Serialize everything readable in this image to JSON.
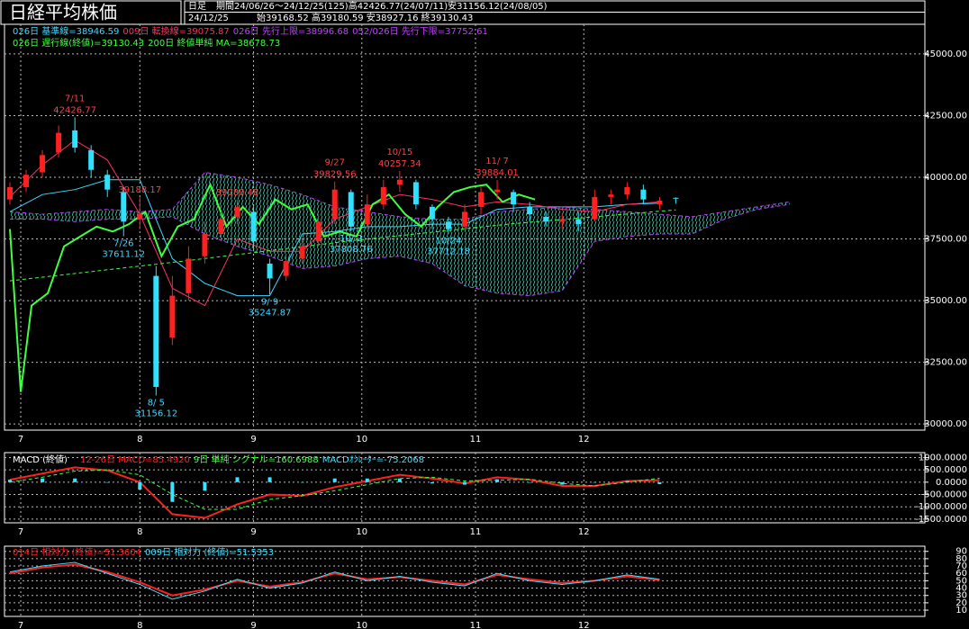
{
  "header": {
    "title": "日経平均株価",
    "period_label": "日足",
    "period": "期間24/06/26～24/12/25(125)高42426.77(24/07/11)安31156.12(24/08/05)",
    "date": "24/12/25",
    "ohlc": "始39168.52 高39180.59 安38927.16 終39130.43"
  },
  "chart_data": [
    {
      "type": "candlestick",
      "up_color": "#ff2020",
      "down_color": "#30e0ff",
      "grid": true,
      "cloud_color": "#40e0c0",
      "xlim": [
        -3,
        167
      ],
      "ylim": [
        29750,
        46200
      ],
      "xticks": [
        {
          "value": 0,
          "label": "7"
        },
        {
          "value": 22,
          "label": "8"
        },
        {
          "value": 43,
          "label": "9"
        },
        {
          "value": 63,
          "label": "10"
        },
        {
          "value": 84,
          "label": "11"
        },
        {
          "value": 104,
          "label": "12"
        }
      ],
      "yticks": [
        {
          "value": 30000,
          "label": "30000.00"
        },
        {
          "value": 32500,
          "label": "32500.00"
        },
        {
          "value": 35000,
          "label": "35000.00"
        },
        {
          "value": 37500,
          "label": "37500.00"
        },
        {
          "value": 40000,
          "label": "40000.00"
        },
        {
          "value": 42500,
          "label": "42500.00"
        },
        {
          "value": 45000,
          "label": "45000.00"
        }
      ],
      "x": [
        -2,
        1,
        4,
        7,
        10,
        13,
        16,
        19,
        22,
        25,
        28,
        31,
        34,
        37,
        40,
        43,
        46,
        49,
        52,
        55,
        58,
        61,
        64,
        67,
        70,
        73,
        76,
        79,
        82,
        85,
        88,
        91,
        94,
        97,
        100,
        103,
        106,
        109,
        112,
        115,
        118,
        121
      ],
      "open": [
        39100,
        39600,
        40200,
        41000,
        41900,
        41100,
        40100,
        39400,
        38300,
        36000,
        33500,
        35300,
        36800,
        37700,
        38400,
        38600,
        36500,
        36000,
        36700,
        37400,
        38300,
        39400,
        38100,
        38900,
        39700,
        39800,
        38800,
        38200,
        38000,
        38800,
        39400,
        39400,
        38800,
        38400,
        38200,
        38300,
        38300,
        39200,
        39300,
        39500,
        38900,
        39168.52
      ],
      "close": [
        39600,
        40100,
        40900,
        41800,
        41200,
        40300,
        39500,
        38200,
        38500,
        31500,
        35200,
        36700,
        37700,
        38300,
        38800,
        37400,
        35900,
        36600,
        37200,
        38200,
        39500,
        38000,
        38900,
        39600,
        39900,
        38900,
        38300,
        37900,
        38600,
        39400,
        39500,
        38900,
        38500,
        38200,
        38300,
        38100,
        39200,
        39300,
        39600,
        39100,
        39050,
        39130.43
      ],
      "high": [
        39800,
        40300,
        41100,
        42100,
        42426.77,
        41300,
        40300,
        39600,
        39188.17,
        36400,
        36000,
        37200,
        38200,
        38600,
        39080.48,
        38800,
        36700,
        36900,
        37500,
        38500,
        39829.56,
        39500,
        39300,
        39900,
        40257.34,
        39900,
        38900,
        38400,
        38900,
        39600,
        39884.01,
        39500,
        39000,
        38600,
        38500,
        38600,
        39500,
        39500,
        39800,
        39700,
        39200,
        39180.59
      ],
      "low": [
        38900,
        39400,
        40000,
        40800,
        41000,
        40000,
        39200,
        37611.12,
        37900,
        31156.12,
        33200,
        35000,
        36500,
        37400,
        38100,
        37000,
        35247.87,
        35800,
        36500,
        37200,
        38100,
        37808.76,
        37900,
        38700,
        39400,
        38700,
        37900,
        37712.18,
        37900,
        38500,
        39100,
        38600,
        38200,
        38000,
        37900,
        37800,
        38200,
        38900,
        39100,
        38900,
        38700,
        38927.16
      ],
      "series": [
        {
          "name": "026日 基準線=38946.59",
          "color": "#40d8ff",
          "x": [
            -2,
            4,
            10,
            16,
            22,
            28,
            34,
            40,
            46,
            52,
            58,
            64,
            70,
            76,
            82,
            88,
            94,
            100,
            106,
            112,
            118
          ],
          "values": [
            38600,
            39300,
            39500,
            39900,
            39900,
            36700,
            35700,
            35200,
            35200,
            37700,
            37800,
            38000,
            38000,
            38100,
            38100,
            38700,
            38800,
            38800,
            38800,
            38900,
            38950
          ]
        },
        {
          "name": "009日 転換線=39075.87",
          "color": "#ff3060",
          "x": [
            -2,
            4,
            10,
            16,
            22,
            28,
            34,
            40,
            46,
            52,
            58,
            64,
            70,
            76,
            82,
            88,
            94,
            100,
            106,
            112,
            118
          ],
          "values": [
            39200,
            40500,
            41500,
            40700,
            38500,
            35500,
            34800,
            37500,
            37000,
            37000,
            38300,
            38800,
            39300,
            39100,
            38800,
            39000,
            38900,
            38700,
            38600,
            38900,
            39000
          ]
        },
        {
          "name": "026日 先行上限=38996.68",
          "color": "#c040ff",
          "style": "dashed",
          "band": "upper",
          "x": [
            -2,
            4,
            10,
            16,
            22,
            28,
            34,
            40,
            46,
            52,
            58,
            64,
            70,
            76,
            82,
            88,
            94,
            100,
            106,
            112,
            118,
            124,
            130,
            136,
            142
          ],
          "values": [
            38600,
            38500,
            38600,
            38700,
            38600,
            38700,
            40200,
            40000,
            39700,
            39300,
            38800,
            38600,
            38400,
            38300,
            38300,
            38600,
            38700,
            38800,
            38700,
            38600,
            38500,
            38400,
            38600,
            38800,
            39000
          ]
        },
        {
          "name": "052/026日 先行下限=37752.61",
          "color": "#c040ff",
          "style": "dashed",
          "band": "lower",
          "x": [
            -2,
            4,
            10,
            16,
            22,
            28,
            34,
            40,
            46,
            52,
            58,
            64,
            70,
            76,
            82,
            88,
            94,
            100,
            106,
            112,
            118,
            124,
            130,
            136,
            142
          ],
          "values": [
            38300,
            38300,
            38200,
            38300,
            38300,
            38400,
            37700,
            37200,
            36800,
            36300,
            36400,
            36700,
            36800,
            36500,
            35600,
            35300,
            35200,
            35400,
            37400,
            37600,
            37700,
            37700,
            38300,
            38700,
            38900
          ]
        },
        {
          "name": "026日 遅行線(終値)=39130.43",
          "color": "#40ff40",
          "width": 2,
          "x": [
            -2,
            0,
            2,
            5,
            8,
            11,
            14,
            17,
            20,
            23,
            26,
            29,
            32,
            35,
            38,
            41,
            44,
            47,
            50,
            53,
            56,
            59,
            62,
            65,
            68,
            71,
            74,
            77,
            80,
            83,
            86,
            89,
            92,
            95
          ],
          "values": [
            37900,
            31300,
            34800,
            35300,
            37200,
            37600,
            38000,
            37800,
            38100,
            38600,
            36800,
            38000,
            38300,
            39700,
            38000,
            38800,
            38100,
            39100,
            38700,
            38900,
            37600,
            37800,
            37600,
            38900,
            39300,
            38500,
            38000,
            38800,
            39400,
            39600,
            39700,
            39000,
            39300,
            39100
          ]
        },
        {
          "name": "200日 終値単純 MA=38678.73",
          "color": "#40ff40",
          "style": "dashed",
          "x": [
            -2,
            30,
            60,
            90,
            121
          ],
          "values": [
            35800,
            36600,
            37400,
            38100,
            38678.73
          ]
        }
      ],
      "annotations": [
        {
          "date": "7/11",
          "x": 10,
          "value": 42426.77,
          "position": "above",
          "color": "#ff4040"
        },
        {
          "x": 22,
          "value": 39188.17,
          "position": "above",
          "color": "#ff4040"
        },
        {
          "date": "7/26",
          "x": 19,
          "value": 37611.12,
          "position": "below",
          "color": "#40d8ff"
        },
        {
          "date": "8/ 5",
          "x": 25,
          "value": 31156.12,
          "position": "below",
          "color": "#40d8ff"
        },
        {
          "x": 40,
          "value": 39080.48,
          "position": "above",
          "color": "#ff4040"
        },
        {
          "date": "9/ 9",
          "x": 46,
          "value": 35247.87,
          "position": "below",
          "color": "#40d8ff"
        },
        {
          "date": "9/27",
          "x": 58,
          "value": 39829.56,
          "position": "above",
          "color": "#ff4040"
        },
        {
          "date": "10/ 2",
          "x": 61,
          "value": 37808.76,
          "position": "below",
          "color": "#40d8ff"
        },
        {
          "date": "10/15",
          "x": 70,
          "value": 40257.34,
          "position": "above",
          "color": "#ff4040"
        },
        {
          "date": "10/24",
          "x": 79,
          "value": 37712.18,
          "position": "below",
          "color": "#40d8ff"
        },
        {
          "date": "11/ 7",
          "x": 88,
          "value": 39884.01,
          "position": "above",
          "color": "#ff4040"
        }
      ]
    },
    {
      "type": "combo",
      "title": "MACD (終値)",
      "grid": true,
      "xlim": [
        -3,
        167
      ],
      "ylim": [
        -1650,
        1200
      ],
      "xticks": [
        {
          "value": 0,
          "label": "7"
        },
        {
          "value": 22,
          "label": "8"
        },
        {
          "value": 43,
          "label": "9"
        },
        {
          "value": 63,
          "label": "10"
        },
        {
          "value": 84,
          "label": "11"
        },
        {
          "value": 104,
          "label": "12"
        }
      ],
      "yticks": [
        {
          "value": 1000,
          "label": "1000.0000"
        },
        {
          "value": 500,
          "label": "500.0000"
        },
        {
          "value": 0,
          "label": "0.0000"
        },
        {
          "value": -500,
          "label": "-500.0000"
        },
        {
          "value": -1000,
          "label": "-1000.0000"
        },
        {
          "value": -1500,
          "label": "-1500.0000"
        }
      ],
      "series": [
        {
          "name": "12-26日 MACD=85.4920",
          "color": "#ff2020",
          "kind": "line",
          "width": 2,
          "x": [
            -2,
            4,
            10,
            16,
            22,
            28,
            34,
            40,
            46,
            52,
            58,
            64,
            70,
            76,
            82,
            88,
            94,
            100,
            106,
            112,
            118
          ],
          "values": [
            100,
            350,
            600,
            480,
            0,
            -1300,
            -1450,
            -900,
            -500,
            -550,
            -200,
            50,
            300,
            150,
            -50,
            200,
            100,
            -150,
            -150,
            50,
            80
          ]
        },
        {
          "name": "9日 単純 シグナル=160.6988",
          "color": "#40ff40",
          "kind": "line",
          "style": "dashed",
          "x": [
            -2,
            4,
            10,
            16,
            22,
            28,
            34,
            40,
            46,
            52,
            58,
            64,
            70,
            76,
            82,
            88,
            94,
            100,
            106,
            112,
            118
          ],
          "values": [
            0,
            200,
            450,
            500,
            300,
            -500,
            -1100,
            -1100,
            -700,
            -550,
            -350,
            -100,
            150,
            200,
            50,
            80,
            120,
            -50,
            -150,
            0,
            160
          ]
        },
        {
          "name": "MACDｵｼﾚｰﾀｰ=-75.2068",
          "color": "#40e0ff",
          "kind": "bar",
          "x": [
            -2,
            4,
            10,
            16,
            22,
            28,
            34,
            40,
            46,
            52,
            58,
            64,
            70,
            76,
            82,
            88,
            94,
            100,
            106,
            112,
            118
          ],
          "values": [
            100,
            150,
            150,
            -20,
            -300,
            -800,
            -350,
            200,
            200,
            0,
            150,
            150,
            150,
            -50,
            -100,
            120,
            -20,
            -100,
            0,
            50,
            -80
          ]
        }
      ]
    },
    {
      "type": "line",
      "grid": true,
      "xlim": [
        -3,
        167
      ],
      "ylim": [
        1.5,
        97
      ],
      "xticks": [
        {
          "value": 0,
          "label": "7"
        },
        {
          "value": 22,
          "label": "8"
        },
        {
          "value": 43,
          "label": "9"
        },
        {
          "value": 63,
          "label": "10"
        },
        {
          "value": 84,
          "label": "11"
        },
        {
          "value": 104,
          "label": "12"
        }
      ],
      "yticks": [
        10,
        20,
        30,
        40,
        50,
        60,
        70,
        80,
        90
      ],
      "series": [
        {
          "name": "014日 相対力 (終値)=51.3604",
          "color": "#ff2020",
          "width": 2,
          "x": [
            -2,
            4,
            10,
            16,
            22,
            28,
            34,
            40,
            46,
            52,
            58,
            64,
            70,
            76,
            82,
            88,
            94,
            100,
            106,
            112,
            118
          ],
          "values": [
            60,
            68,
            72,
            62,
            48,
            30,
            38,
            50,
            42,
            48,
            60,
            52,
            55,
            50,
            45,
            58,
            52,
            47,
            50,
            56,
            51
          ]
        },
        {
          "name": "009日 相対力 (終値)=51.5353",
          "color": "#40e0ff",
          "x": [
            -2,
            4,
            10,
            16,
            22,
            28,
            34,
            40,
            46,
            52,
            58,
            64,
            70,
            76,
            82,
            88,
            94,
            100,
            106,
            112,
            118
          ],
          "values": [
            62,
            70,
            75,
            60,
            45,
            25,
            36,
            52,
            40,
            47,
            62,
            50,
            56,
            48,
            43,
            60,
            50,
            45,
            50,
            58,
            52
          ]
        }
      ]
    }
  ]
}
